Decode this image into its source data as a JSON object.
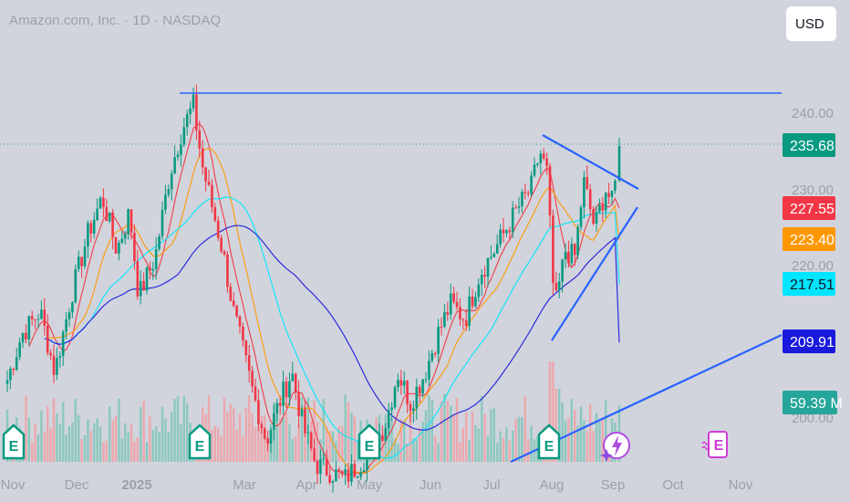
{
  "header": {
    "title": "Amazon.com, Inc. · 1D · NASDAQ",
    "currency_button": "USD"
  },
  "chart_data": {
    "type": "candlestick",
    "symbol": "Amazon.com, Inc.",
    "interval": "1D",
    "exchange": "NASDAQ",
    "currency": "USD",
    "y_axis": {
      "ticks": [
        "240.00",
        "230.00",
        "220.00",
        "200.00"
      ],
      "range": [
        196,
        245
      ]
    },
    "x_axis": {
      "ticks": [
        "Nov",
        "Dec",
        "2025",
        "Mar",
        "Apr",
        "May",
        "Jun",
        "Jul",
        "Aug",
        "Sep",
        "Oct",
        "Nov"
      ]
    },
    "price_badges": [
      {
        "id": "last-price",
        "label": "235.68",
        "value": 235.68,
        "color": "#089981",
        "text_color": "#ffffff"
      },
      {
        "id": "ma-red",
        "label": "227.55",
        "value": 227.55,
        "color": "#f23645",
        "text_color": "#ffffff"
      },
      {
        "id": "ma-orange",
        "label": "223.40",
        "value": 223.4,
        "color": "#ff9800",
        "text_color": "#ffffff"
      },
      {
        "id": "ma-cyan",
        "label": "217.51",
        "value": 217.51,
        "color": "#00e5ff",
        "text_color": "#131722"
      },
      {
        "id": "ma-navy",
        "label": "209.91",
        "value": 209.91,
        "color": "#1a1adc",
        "text_color": "#ffffff"
      },
      {
        "id": "volume",
        "label": "59.39 M",
        "value": 59.39,
        "unit": "M",
        "color": "#26a69a",
        "text_color": "#ffffff"
      }
    ],
    "moving_averages": [
      {
        "color": "#f23645",
        "last": 227.55
      },
      {
        "color": "#ff9800",
        "last": 223.4
      },
      {
        "color": "#00e5ff",
        "last": 217.51
      },
      {
        "color": "#1a1adc",
        "last": 209.91
      }
    ],
    "drawings": [
      {
        "type": "horizontal-resistance",
        "price": 243.2,
        "color": "#2962ff"
      },
      {
        "type": "triangle-upper",
        "color": "#2962ff"
      },
      {
        "type": "triangle-lower",
        "color": "#2962ff"
      },
      {
        "type": "long-trendline",
        "color": "#2962ff"
      }
    ],
    "event_markers": [
      {
        "month": "Nov",
        "label": "E",
        "kind": "earnings"
      },
      {
        "month": "2025",
        "label": "E",
        "kind": "earnings"
      },
      {
        "month": "May",
        "label": "E",
        "kind": "earnings"
      },
      {
        "month": "Aug",
        "label": "E",
        "kind": "earnings"
      },
      {
        "month": "Sep",
        "kind": "flash"
      },
      {
        "month": "Oct",
        "label": "E",
        "kind": "future-earnings"
      }
    ],
    "grid": false,
    "volume_pane": true
  }
}
